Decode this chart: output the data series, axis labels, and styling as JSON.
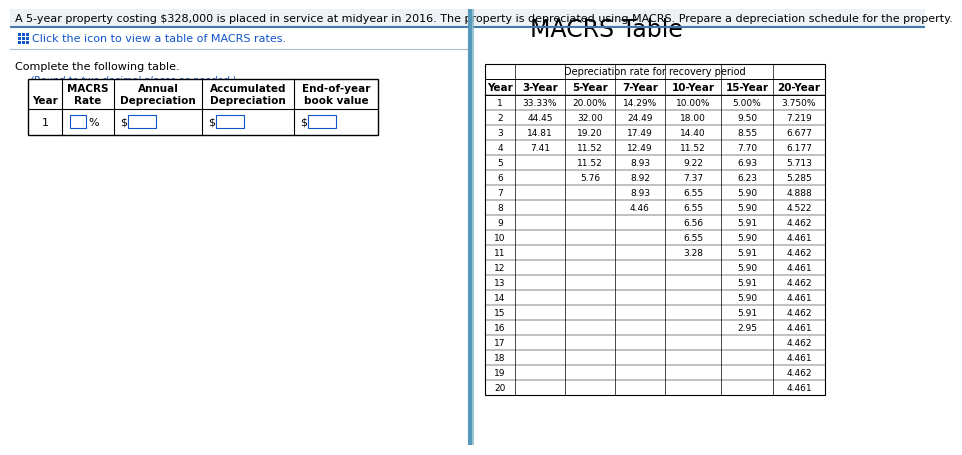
{
  "title_text": "A 5-year property costing $328,000 is placed in service at midyear in 2016. The property is depreciated using MACRS. Prepare a depreciation schedule for the property.",
  "click_text": "Click the icon to view a table of MACRS rates.",
  "complete_text": "Complete the following table.",
  "round_text": "(Round to two decimal places as needed.)",
  "left_table_headers_row1": [
    "",
    "MACRS",
    "Annual",
    "Accumulated",
    "End-of-year"
  ],
  "left_table_headers_row2": [
    "Year",
    "Rate",
    "Depreciation",
    "Depreciation",
    "book value"
  ],
  "macrs_title": "MACRS Table",
  "macrs_subtitle": "Depreciation rate for recovery period",
  "macrs_col_headers": [
    "Year",
    "3-Year",
    "5-Year",
    "7-Year",
    "10-Year",
    "15-Year",
    "20-Year"
  ],
  "macrs_data": [
    [
      "1",
      "33.33%",
      "20.00%",
      "14.29%",
      "10.00%",
      "5.00%",
      "3.750%"
    ],
    [
      "2",
      "44.45",
      "32.00",
      "24.49",
      "18.00",
      "9.50",
      "7.219"
    ],
    [
      "3",
      "14.81",
      "19.20",
      "17.49",
      "14.40",
      "8.55",
      "6.677"
    ],
    [
      "4",
      "7.41",
      "11.52",
      "12.49",
      "11.52",
      "7.70",
      "6.177"
    ],
    [
      "5",
      "",
      "11.52",
      "8.93",
      "9.22",
      "6.93",
      "5.713"
    ],
    [
      "6",
      "",
      "5.76",
      "8.92",
      "7.37",
      "6.23",
      "5.285"
    ],
    [
      "7",
      "",
      "",
      "8.93",
      "6.55",
      "5.90",
      "4.888"
    ],
    [
      "8",
      "",
      "",
      "4.46",
      "6.55",
      "5.90",
      "4.522"
    ],
    [
      "9",
      "",
      "",
      "",
      "6.56",
      "5.91",
      "4.462"
    ],
    [
      "10",
      "",
      "",
      "",
      "6.55",
      "5.90",
      "4.461"
    ],
    [
      "11",
      "",
      "",
      "",
      "3.28",
      "5.91",
      "4.462"
    ],
    [
      "12",
      "",
      "",
      "",
      "",
      "5.90",
      "4.461"
    ],
    [
      "13",
      "",
      "",
      "",
      "",
      "5.91",
      "4.462"
    ],
    [
      "14",
      "",
      "",
      "",
      "",
      "5.90",
      "4.461"
    ],
    [
      "15",
      "",
      "",
      "",
      "",
      "5.91",
      "4.462"
    ],
    [
      "16",
      "",
      "",
      "",
      "",
      "2.95",
      "4.461"
    ],
    [
      "17",
      "",
      "",
      "",
      "",
      "",
      "4.462"
    ],
    [
      "18",
      "",
      "",
      "",
      "",
      "",
      "4.461"
    ],
    [
      "19",
      "",
      "",
      "",
      "",
      "",
      "4.462"
    ],
    [
      "20",
      "",
      "",
      "",
      "",
      "",
      "4.461"
    ]
  ],
  "bg_color": "#ffffff",
  "black": "#000000",
  "blue_color": "#1155CC",
  "teal_border": "#3A7CA5",
  "title_fontsize": 8.0,
  "body_fontsize": 8.0,
  "small_fontsize": 7.5,
  "table_fontsize": 7.5
}
